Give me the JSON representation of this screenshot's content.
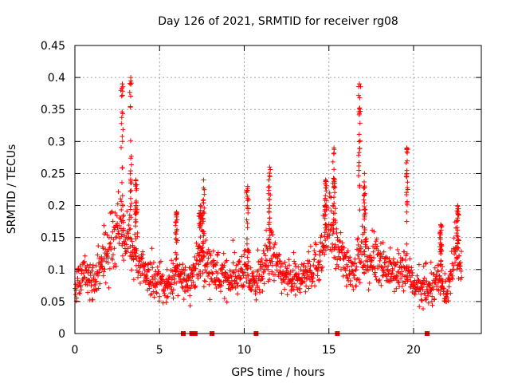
{
  "chart_data": {
    "type": "scatter",
    "title": "Day 126 of 2021, SRMTID for receiver rg08",
    "xlabel": "GPS time / hours",
    "ylabel": "SRMTID / TECUs",
    "xlim": [
      0,
      24
    ],
    "ylim": [
      0,
      0.45
    ],
    "xticks": [
      0,
      5,
      10,
      15,
      20
    ],
    "xtick_labels": [
      "0",
      "5",
      "10",
      "15",
      "20"
    ],
    "yticks": [
      0,
      0.05,
      0.1,
      0.15,
      0.2,
      0.25,
      0.3,
      0.35,
      0.4,
      0.45
    ],
    "ytick_labels": [
      "0",
      "0.05",
      "0.1",
      "0.15",
      "0.2",
      "0.25",
      "0.3",
      "0.35",
      "0.4",
      "0.45"
    ],
    "grid": true,
    "marker": "plus",
    "color": "#ff0000",
    "data_gaps_at_zero": [
      6.4,
      6.9,
      7.1,
      8.1,
      10.7,
      15.5,
      20.8
    ],
    "series": [
      {
        "name": "SRMTID",
        "baseline_profile": [
          [
            0.0,
            0.07
          ],
          [
            0.5,
            0.1
          ],
          [
            1.0,
            0.085
          ],
          [
            1.5,
            0.1
          ],
          [
            2.0,
            0.14
          ],
          [
            2.5,
            0.17
          ],
          [
            3.0,
            0.15
          ],
          [
            3.5,
            0.13
          ],
          [
            4.0,
            0.1
          ],
          [
            4.5,
            0.085
          ],
          [
            5.0,
            0.08
          ],
          [
            5.5,
            0.075
          ],
          [
            6.0,
            0.09
          ],
          [
            6.5,
            0.08
          ],
          [
            7.0,
            0.095
          ],
          [
            7.5,
            0.12
          ],
          [
            8.0,
            0.1
          ],
          [
            8.5,
            0.09
          ],
          [
            9.0,
            0.085
          ],
          [
            9.5,
            0.09
          ],
          [
            10.0,
            0.1
          ],
          [
            10.5,
            0.075
          ],
          [
            11.0,
            0.09
          ],
          [
            11.5,
            0.13
          ],
          [
            12.0,
            0.1
          ],
          [
            12.5,
            0.085
          ],
          [
            13.0,
            0.08
          ],
          [
            13.5,
            0.09
          ],
          [
            14.0,
            0.1
          ],
          [
            14.5,
            0.12
          ],
          [
            15.0,
            0.17
          ],
          [
            15.5,
            0.13
          ],
          [
            16.0,
            0.11
          ],
          [
            16.5,
            0.1
          ],
          [
            17.0,
            0.12
          ],
          [
            17.5,
            0.11
          ],
          [
            18.0,
            0.12
          ],
          [
            18.5,
            0.1
          ],
          [
            19.0,
            0.09
          ],
          [
            19.5,
            0.1
          ],
          [
            20.0,
            0.08
          ],
          [
            20.5,
            0.065
          ],
          [
            21.0,
            0.07
          ],
          [
            21.5,
            0.09
          ],
          [
            22.0,
            0.06
          ],
          [
            22.5,
            0.13
          ],
          [
            22.8,
            0.09
          ]
        ],
        "peaks": [
          {
            "x": 2.8,
            "y": 0.39
          },
          {
            "x": 3.3,
            "y": 0.4
          },
          {
            "x": 3.6,
            "y": 0.24
          },
          {
            "x": 6.0,
            "y": 0.19
          },
          {
            "x": 7.4,
            "y": 0.2
          },
          {
            "x": 7.6,
            "y": 0.24
          },
          {
            "x": 10.2,
            "y": 0.23
          },
          {
            "x": 11.5,
            "y": 0.26
          },
          {
            "x": 14.8,
            "y": 0.24
          },
          {
            "x": 15.3,
            "y": 0.29
          },
          {
            "x": 16.8,
            "y": 0.39
          },
          {
            "x": 17.1,
            "y": 0.25
          },
          {
            "x": 19.6,
            "y": 0.29
          },
          {
            "x": 21.6,
            "y": 0.17
          },
          {
            "x": 22.6,
            "y": 0.2
          }
        ]
      }
    ]
  }
}
